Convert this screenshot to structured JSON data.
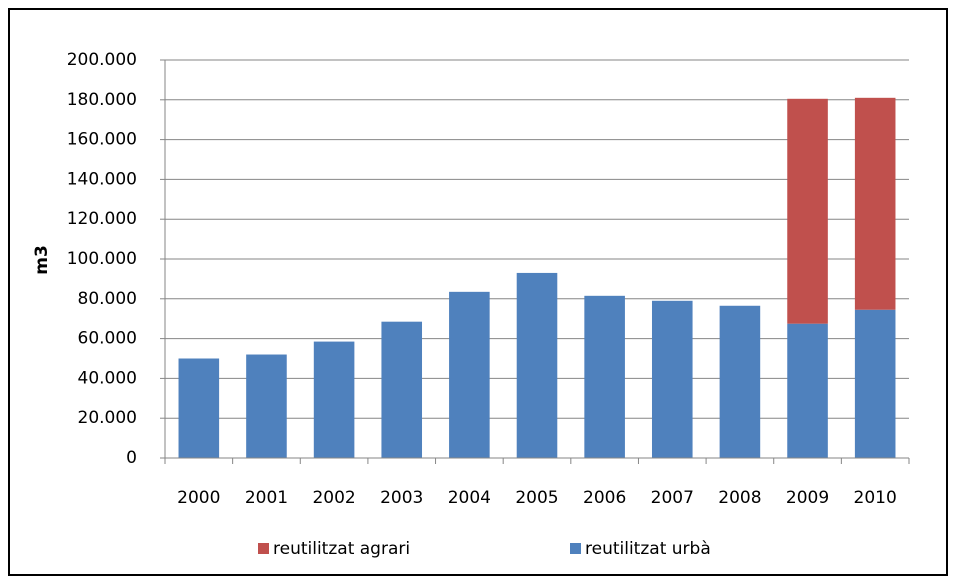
{
  "chart_data": {
    "type": "stacked_bar",
    "y_label": "m3",
    "categories": [
      "2000",
      "2001",
      "2002",
      "2003",
      "2004",
      "2005",
      "2006",
      "2007",
      "2008",
      "2009",
      "2010"
    ],
    "series": [
      {
        "name": "reutilitzat urbà",
        "color": "#4f81bd",
        "values": [
          50000,
          52000,
          58500,
          68500,
          83500,
          93000,
          81500,
          79000,
          76500,
          67500,
          74500
        ]
      },
      {
        "name": "reutilitzat agrari",
        "color": "#c0504d",
        "values": [
          null,
          null,
          null,
          null,
          null,
          null,
          null,
          null,
          null,
          113000,
          106500
        ]
      }
    ],
    "ylim": [
      0,
      200000
    ],
    "yticks": [
      0,
      {
        "value": 20000,
        "label": "20.000"
      },
      {
        "value": 40000,
        "label": "40.000"
      },
      {
        "value": 60000,
        "label": "60.000"
      },
      {
        "value": 80000,
        "label": "80.000"
      },
      {
        "value": 100000,
        "label": "100.000"
      },
      {
        "value": 120000,
        "label": "120.000"
      },
      {
        "value": 140000,
        "label": "140.000"
      },
      {
        "value": 160000,
        "label": "160.000"
      },
      {
        "value": 180000,
        "label": "180.000"
      },
      {
        "value": 200000,
        "label": "200.000"
      }
    ],
    "grid": true,
    "legend": "bottom"
  }
}
